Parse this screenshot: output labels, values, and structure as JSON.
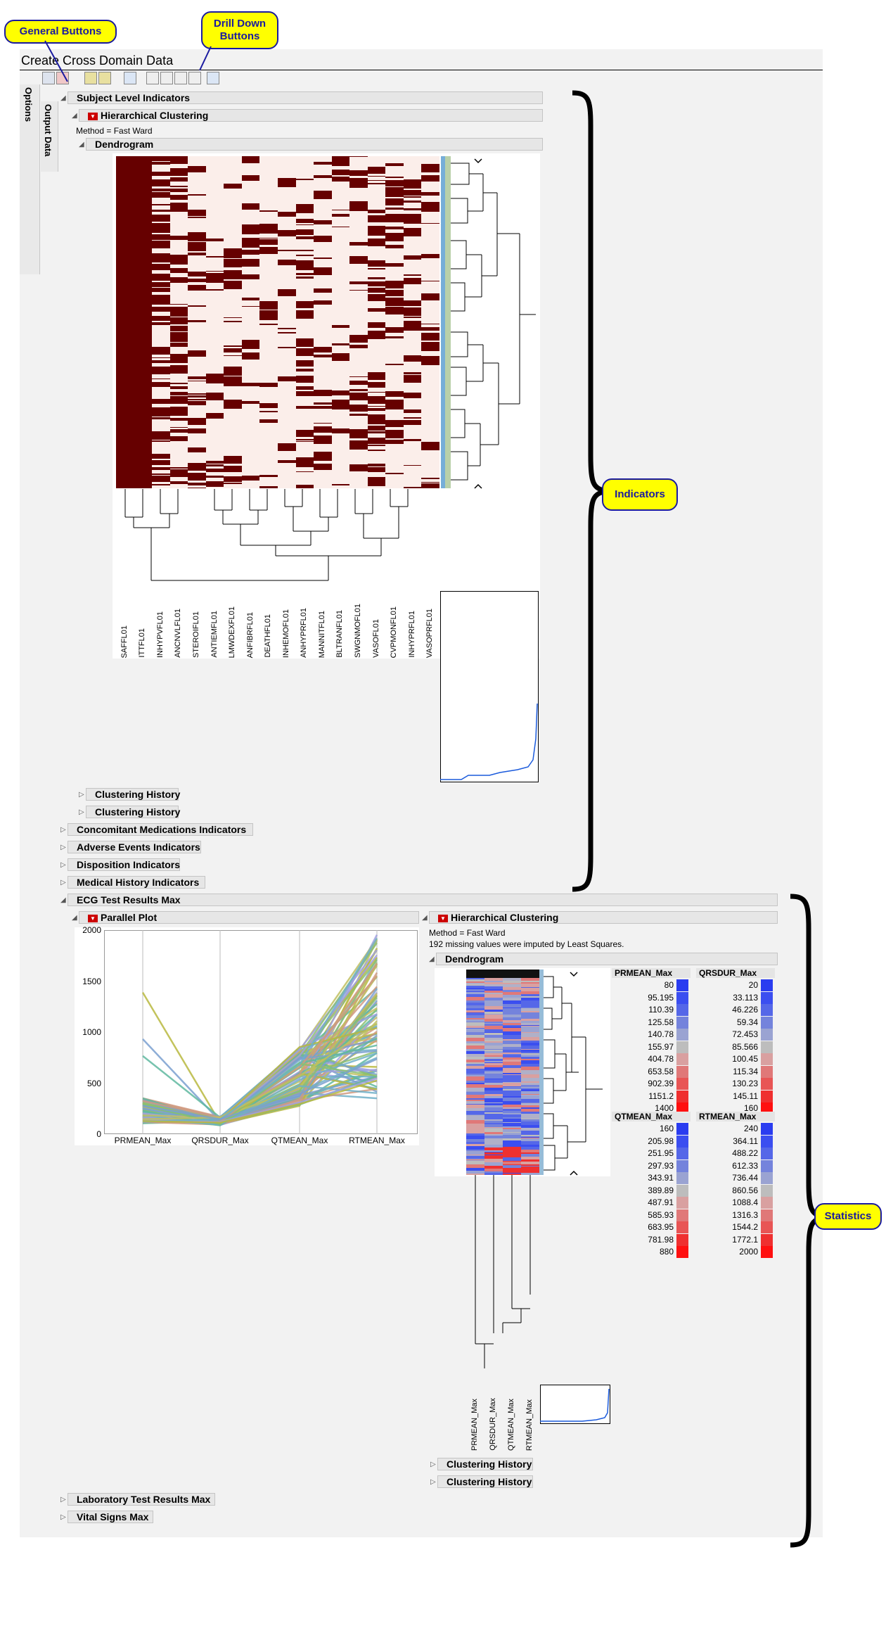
{
  "callouts": {
    "general_buttons": "General Buttons",
    "drill_down_buttons": "Drill Down Buttons",
    "indicators": "Indicators",
    "statistics": "Statistics"
  },
  "window": {
    "title": "Create Cross Domain Data"
  },
  "side_tabs": {
    "options": "Options",
    "output_data": "Output Data"
  },
  "sections": {
    "subject_level": "Subject Level Indicators",
    "hier_clustering": "Hierarchical Clustering",
    "method": "Method = Fast Ward",
    "dendrogram": "Dendrogram",
    "clustering_history_1": "Clustering History",
    "clustering_history_2": "Clustering History",
    "conmed": "Concomitant Medications Indicators",
    "adverse": "Adverse Events Indicators",
    "disposition": "Disposition Indicators",
    "medhist": "Medical History Indicators",
    "ecg": "ECG Test Results Max",
    "parallel_plot": "Parallel Plot",
    "ecg_hier": "Hierarchical Clustering",
    "ecg_method": "Method = Fast Ward",
    "ecg_imputed": "192 missing values were imputed by Least Squares.",
    "ecg_dendrogram": "Dendrogram",
    "ecg_hist_1": "Clustering History",
    "ecg_hist_2": "Clustering History",
    "lab": "Laboratory Test Results Max",
    "vitals": "Vital Signs Max"
  },
  "indicator_columns": [
    "SAFFL01",
    "ITTFL01",
    "INHYPVFL01",
    "ANCNVLFL01",
    "STEROIFL01",
    "ANTIEMFL01",
    "LMWDEXFL01",
    "ANFIBRFL01",
    "DEATHFL01",
    "INHEMOFL01",
    "ANHYPRFL01",
    "MANNITFL01",
    "BLTRANFL01",
    "SWGNMOFL01",
    "VASOFL01",
    "CVPMONFL01",
    "INHYPRFL01",
    "VASOPRFL01"
  ],
  "heatmap_colors": {
    "high": "#660000",
    "low": "#fbeeea"
  },
  "parallel_plot": {
    "y_ticks": [
      "2000",
      "1500",
      "1000",
      "500",
      "0"
    ],
    "x_labels": [
      "PRMEAN_Max",
      "QRSDUR_Max",
      "QTMEAN_Max",
      "RTMEAN_Max"
    ]
  },
  "ecg_dendro_columns": [
    "PRMEAN_Max",
    "QRSDUR_Max",
    "QTMEAN_Max",
    "RTMEAN_Max"
  ],
  "legends": [
    {
      "name": "PRMEAN_Max",
      "values": [
        "80",
        "95.195",
        "110.39",
        "125.58",
        "140.78",
        "155.97",
        "404.78",
        "653.58",
        "902.39",
        "1151.2",
        "1400"
      ]
    },
    {
      "name": "QRSDUR_Max",
      "values": [
        "20",
        "33.113",
        "46.226",
        "59.34",
        "72.453",
        "85.566",
        "100.45",
        "115.34",
        "130.23",
        "145.11",
        "160"
      ]
    },
    {
      "name": "QTMEAN_Max",
      "values": [
        "160",
        "205.98",
        "251.95",
        "297.93",
        "343.91",
        "389.89",
        "487.91",
        "585.93",
        "683.95",
        "781.98",
        "880"
      ]
    },
    {
      "name": "RTMEAN_Max",
      "values": [
        "240",
        "364.11",
        "488.22",
        "612.33",
        "736.44",
        "860.56",
        "1088.4",
        "1316.3",
        "1544.2",
        "1772.1",
        "2000"
      ]
    }
  ],
  "legend_colors": [
    "#2a3cf0",
    "#3b4ef0",
    "#5567e8",
    "#7483dc",
    "#9aa3d2",
    "#bdbdbd",
    "#d9a0a0",
    "#e07878",
    "#e85555",
    "#ef3030",
    "#ff1010"
  ]
}
